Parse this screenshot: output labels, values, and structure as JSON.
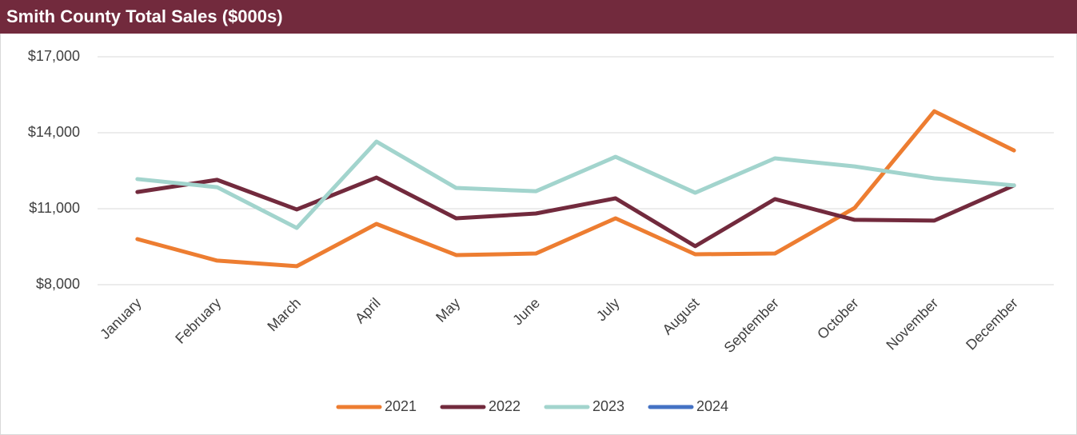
{
  "chart_data": {
    "type": "line",
    "title": "Smith County Total Sales ($000s)",
    "categories": [
      "January",
      "February",
      "March",
      "April",
      "May",
      "June",
      "July",
      "August",
      "September",
      "October",
      "November",
      "December"
    ],
    "series": [
      {
        "name": "2021",
        "color": "#ed7d31",
        "values": [
          9800,
          8950,
          8730,
          10400,
          9170,
          9230,
          10620,
          9200,
          9230,
          11030,
          14850,
          13300
        ]
      },
      {
        "name": "2022",
        "color": "#722a3d",
        "values": [
          11660,
          12140,
          10970,
          12230,
          10620,
          10810,
          11410,
          9520,
          11380,
          10560,
          10530,
          11920
        ]
      },
      {
        "name": "2023",
        "color": "#a2d4cd",
        "values": [
          12170,
          11850,
          10240,
          13650,
          11820,
          11690,
          13050,
          11630,
          12990,
          12670,
          12200,
          11920
        ]
      },
      {
        "name": "2024",
        "color": "#4472c4",
        "values": [
          null,
          null,
          null,
          null,
          null,
          null,
          null,
          null,
          null,
          null,
          null,
          null
        ]
      }
    ],
    "ylim": [
      8000,
      17000
    ],
    "yticks": [
      {
        "value": 8000,
        "label": "$8,000"
      },
      {
        "value": 11000,
        "label": "$11,000"
      },
      {
        "value": 14000,
        "label": "$14,000"
      },
      {
        "value": 17000,
        "label": "$17,000"
      }
    ],
    "grid": true,
    "legend": "bottom"
  }
}
